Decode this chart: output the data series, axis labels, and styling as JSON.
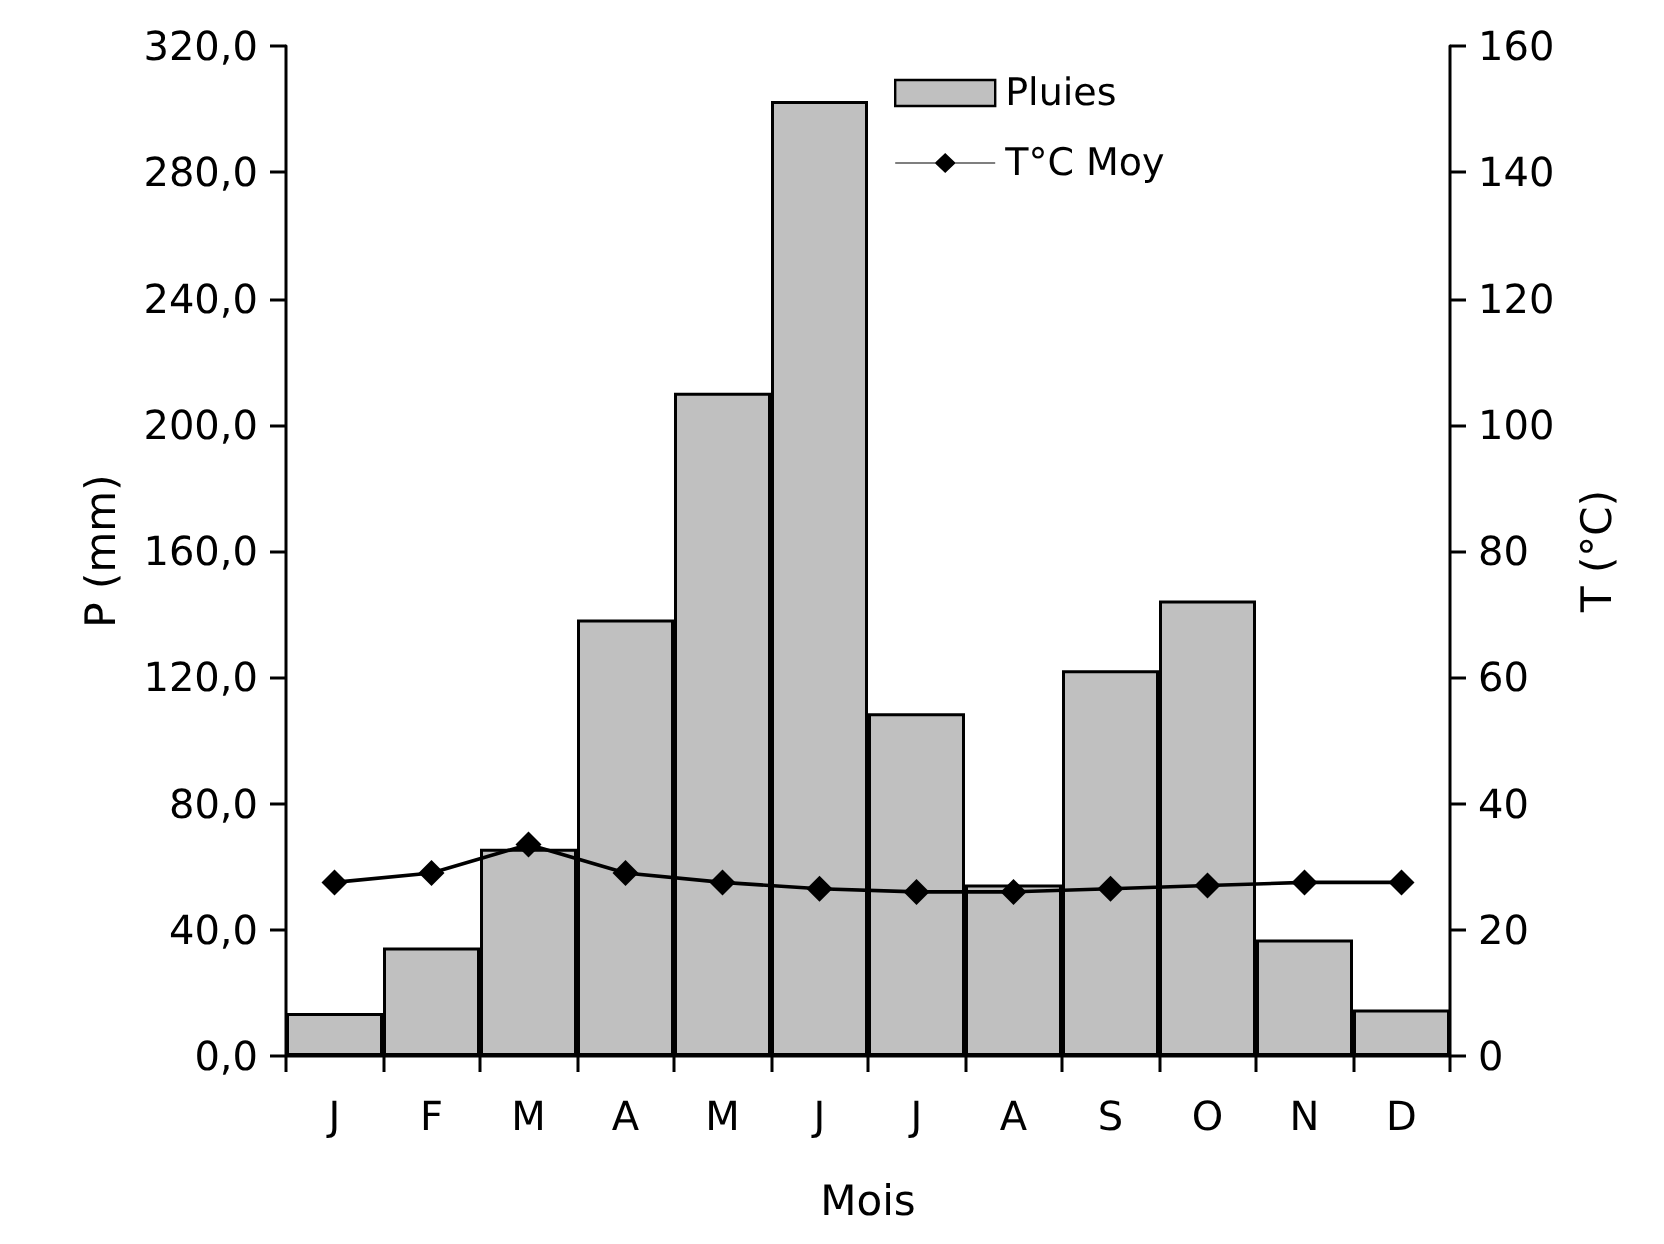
{
  "chart_data": {
    "type": "bar",
    "xlabel": "Mois",
    "ylabel": "P (mm)",
    "y2label": "T (°C)",
    "categories": [
      "J",
      "F",
      "M",
      "A",
      "M",
      "J",
      "J",
      "A",
      "S",
      "O",
      "N",
      "D"
    ],
    "series": [
      {
        "name": "Pluies",
        "color": "#c0c0c0",
        "values": [
          13.6,
          34.4,
          65.7,
          138.3,
          210.1,
          302.6,
          108.6,
          54.3,
          122.2,
          144.3,
          36.9,
          14.7
        ]
      },
      {
        "name": "T°C Moy",
        "type": "line",
        "axis": "y2",
        "color": "#000000",
        "values": [
          27.5,
          29,
          33.5,
          29,
          27.5,
          26.5,
          26,
          26,
          26.5,
          27,
          27.5,
          27.5
        ]
      }
    ],
    "ylim": [
      0,
      320
    ],
    "yticks": [
      {
        "value": 0,
        "label": "0,0"
      },
      {
        "value": 40,
        "label": "40,0"
      },
      {
        "value": 80,
        "label": "80,0"
      },
      {
        "value": 120,
        "label": "120,0"
      },
      {
        "value": 160,
        "label": "160,0"
      },
      {
        "value": 200,
        "label": "200,0"
      },
      {
        "value": 240,
        "label": "240,0"
      },
      {
        "value": 280,
        "label": "280,0"
      },
      {
        "value": 320,
        "label": "320,0"
      }
    ],
    "y2lim": [
      0,
      160
    ],
    "y2ticks": [
      0,
      20,
      40,
      60,
      80,
      100,
      120,
      140,
      160
    ],
    "grid": false,
    "legend": "top",
    "marker": "diamond",
    "line_style": "solid"
  }
}
